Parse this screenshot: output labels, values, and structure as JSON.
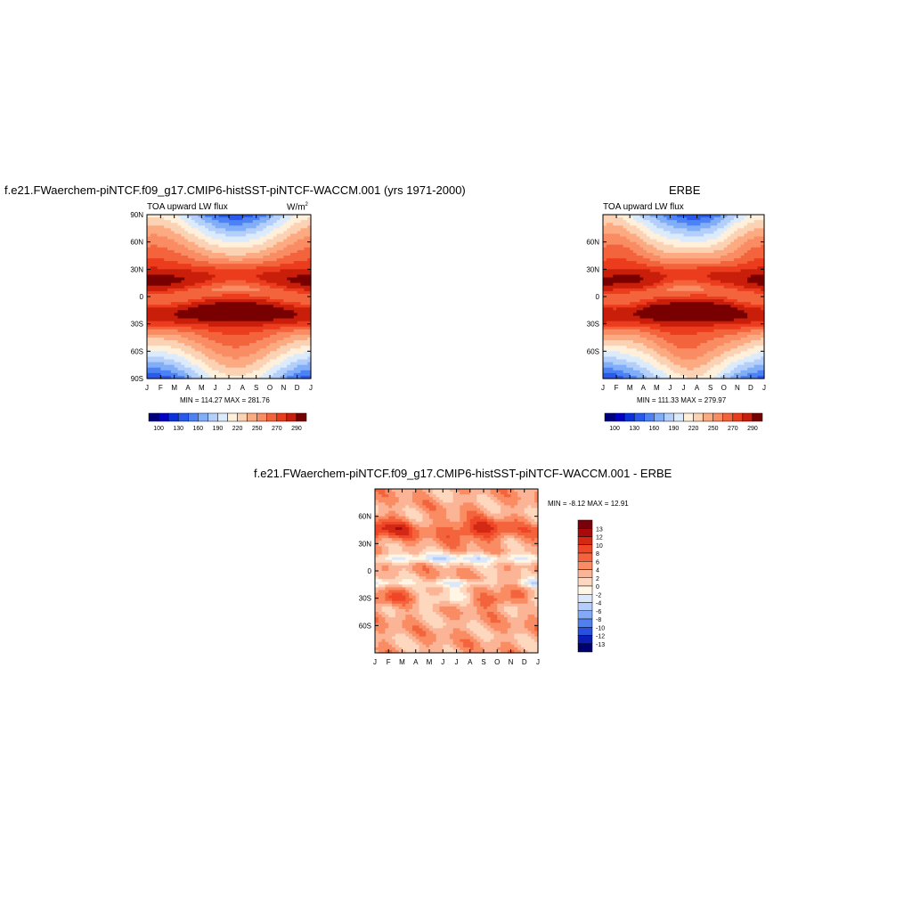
{
  "chart_data": [
    {
      "type": "heatmap",
      "title": "f.e21.FWaerchem-piNTCF.f09_g17.CMIP6-histSST-piNTCF-WACCM.001 (yrs 1971-2000)",
      "subtitle": "TOA upward LW flux",
      "units_base": "W/m",
      "units_exp": "2",
      "x_ticks": [
        "J",
        "F",
        "M",
        "A",
        "M",
        "J",
        "J",
        "A",
        "S",
        "O",
        "N",
        "D",
        "J"
      ],
      "y_ticks": [
        "90N",
        "60N",
        "30N",
        "0",
        "30S",
        "60S",
        "90S"
      ],
      "y_tick_values": [
        90,
        60,
        30,
        0,
        -30,
        -60,
        -90
      ],
      "minmax": "MIN = 114.27   MAX = 281.76",
      "colorbar_labels": [
        "100",
        "130",
        "160",
        "190",
        "220",
        "250",
        "270",
        "290"
      ],
      "colors": [
        "#00007f",
        "#0000c8",
        "#0a32dc",
        "#2a5aec",
        "#4c82f4",
        "#82aef8",
        "#b4d0fa",
        "#dcebfc",
        "#fff0dc",
        "#fcd2b4",
        "#fcaa82",
        "#fa8c64",
        "#f4643c",
        "#ec3c1e",
        "#c81e0a",
        "#780000"
      ]
    },
    {
      "type": "heatmap",
      "title": "ERBE",
      "subtitle": "TOA upward LW flux",
      "x_ticks": [
        "J",
        "F",
        "M",
        "A",
        "M",
        "J",
        "J",
        "A",
        "S",
        "O",
        "N",
        "D",
        "J"
      ],
      "y_ticks": [
        "60N",
        "30N",
        "0",
        "30S",
        "60S"
      ],
      "y_tick_values": [
        60,
        30,
        0,
        -30,
        -60
      ],
      "minmax": "MIN = 111.33   MAX = 279.97",
      "colorbar_labels": [
        "100",
        "130",
        "160",
        "190",
        "220",
        "250",
        "270",
        "290"
      ]
    },
    {
      "type": "heatmap",
      "title": "f.e21.FWaerchem-piNTCF.f09_g17.CMIP6-histSST-piNTCF-WACCM.001 - ERBE",
      "x_ticks": [
        "J",
        "F",
        "M",
        "A",
        "M",
        "J",
        "J",
        "A",
        "S",
        "O",
        "N",
        "D",
        "J"
      ],
      "y_ticks": [
        "60N",
        "30N",
        "0",
        "30S",
        "60S"
      ],
      "y_tick_values": [
        60,
        30,
        0,
        -30,
        -60
      ],
      "minmax": "MIN =  -8.12   MAX =  12.91",
      "colorbar_labels": [
        "13",
        "12",
        "10",
        "8",
        "6",
        "4",
        "2",
        "0",
        "-2",
        "-4",
        "-6",
        "-8",
        "-10",
        "-12",
        "-13"
      ],
      "colors": [
        "#78000a",
        "#aa0a0a",
        "#d22814",
        "#f04628",
        "#f4643c",
        "#fa8c64",
        "#fcb496",
        "#fed8be",
        "#fff6e6",
        "#dce8fa",
        "#b4cdfa",
        "#82aaf6",
        "#5080ee",
        "#2850dc",
        "#0a1eb4",
        "#00006e"
      ]
    }
  ]
}
